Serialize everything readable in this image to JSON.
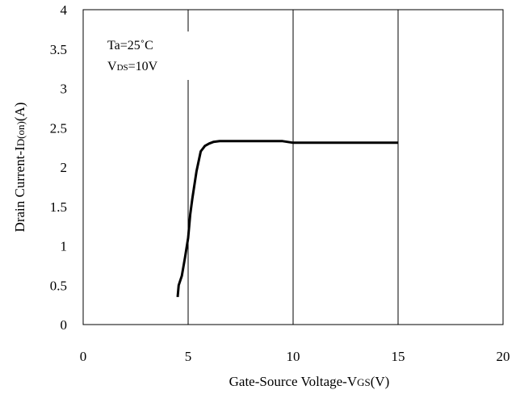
{
  "chart_data": {
    "type": "line",
    "title": "",
    "xlabel": "Gate-Source Voltage-VGS(V)",
    "xlabel_parts": {
      "main": "Gate-Source Voltage-V",
      "sub": "GS",
      "tail": "(V)"
    },
    "ylabel": "Drain Current-ID(on)(A)",
    "ylabel_parts": {
      "main": "Drain Current-I",
      "sub": "D(on)",
      "tail": "(A)"
    },
    "xlim": [
      0,
      20
    ],
    "ylim": [
      0,
      4
    ],
    "x_ticks": [
      "0",
      "5",
      "10",
      "15",
      "20"
    ],
    "y_ticks": [
      "0",
      "0.5",
      "1",
      "1.5",
      "2",
      "2.5",
      "3",
      "3.5",
      "4"
    ],
    "x_tick_values": [
      0,
      5,
      10,
      15,
      20
    ],
    "y_tick_values": [
      0,
      0.5,
      1,
      1.5,
      2,
      2.5,
      3,
      3.5,
      4
    ],
    "grid": true,
    "annotation": {
      "line1": "Ta=25˚C",
      "line2_main": "V",
      "line2_sub": "DS",
      "line2_tail": "=10V"
    },
    "series": [
      {
        "x": [
          4.5,
          4.55,
          4.7,
          4.85,
          5.0,
          5.1,
          5.2,
          5.4,
          5.6,
          5.8,
          6.0,
          6.2,
          6.5,
          7.0,
          8.0,
          9.0,
          9.5,
          10.0,
          12.0,
          15.0
        ],
        "y": [
          0.35,
          0.5,
          0.62,
          0.85,
          1.1,
          1.4,
          1.6,
          1.95,
          2.2,
          2.27,
          2.3,
          2.32,
          2.33,
          2.33,
          2.33,
          2.33,
          2.33,
          2.31,
          2.31,
          2.31
        ]
      }
    ]
  }
}
